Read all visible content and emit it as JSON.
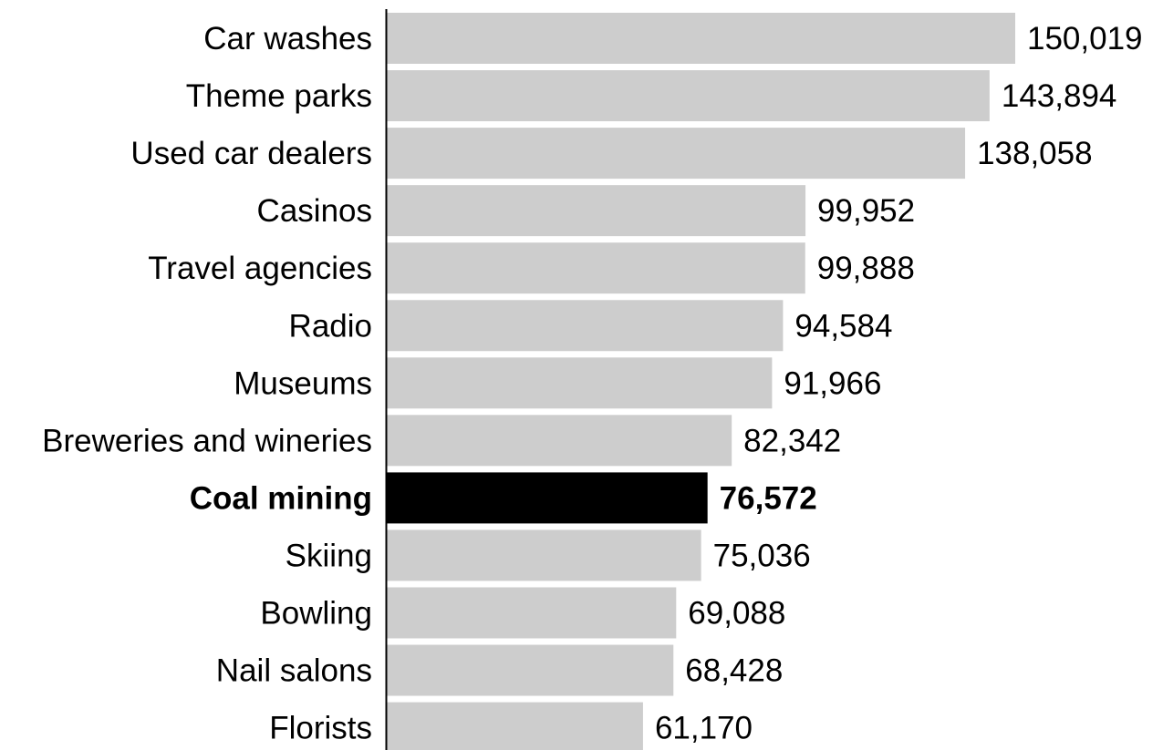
{
  "chart_data": {
    "type": "bar",
    "orientation": "horizontal",
    "categories": [
      "Car washes",
      "Theme parks",
      "Used car dealers",
      "Casinos",
      "Travel agencies",
      "Radio",
      "Museums",
      "Breweries and wineries",
      "Coal mining",
      "Skiing",
      "Bowling",
      "Nail salons",
      "Florists"
    ],
    "values": [
      150019,
      143894,
      138058,
      99952,
      99888,
      94584,
      91966,
      82342,
      76572,
      75036,
      69088,
      68428,
      61170
    ],
    "value_labels": [
      "150,019",
      "143,894",
      "138,058",
      "99,952",
      "99,888",
      "94,584",
      "91,966",
      "82,342",
      "76,572",
      "75,036",
      "69,088",
      "68,428",
      "61,170"
    ],
    "highlighted": "Coal mining",
    "xlim": [
      0,
      150019
    ],
    "grid": false,
    "legend": "none",
    "colors": {
      "bar": "#cdcdcd",
      "highlight": "#000000",
      "axis": "#000000",
      "text": "#000000"
    }
  }
}
